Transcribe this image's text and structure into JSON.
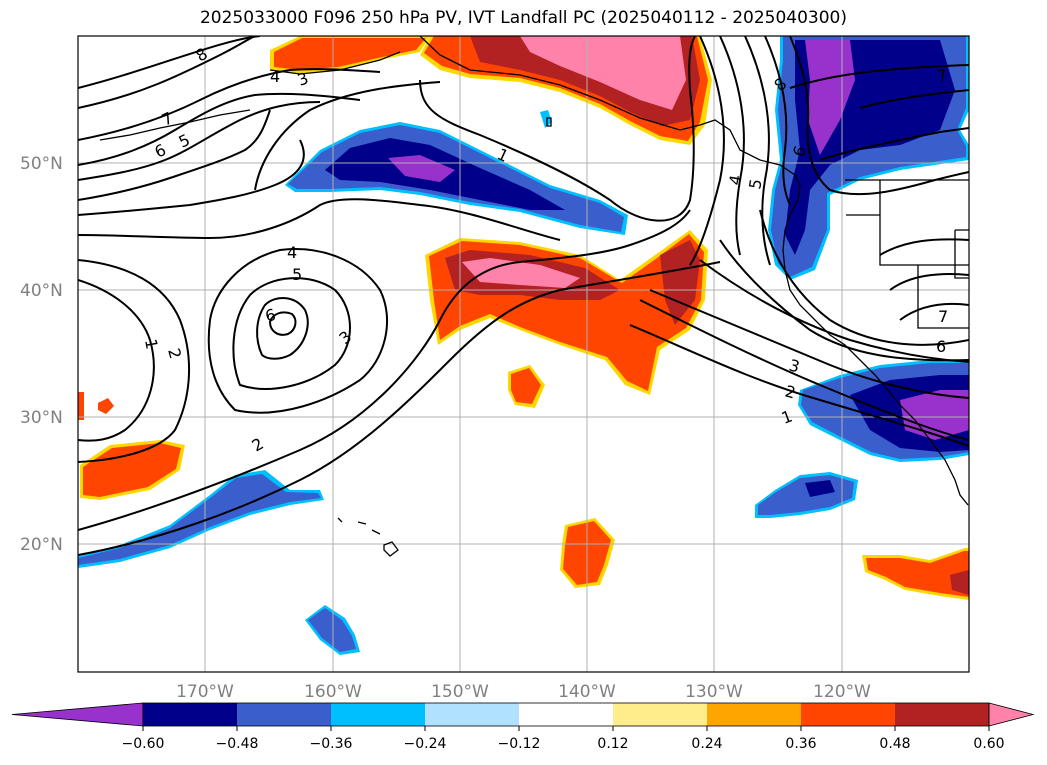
{
  "title": "2025033000 F096 250 hPa PV, IVT Landfall PC (2025040112 - 2025040300)",
  "lat_labels": [
    "50°N",
    "40°N",
    "30°N",
    "20°N"
  ],
  "lon_labels": [
    "170°W",
    "160°W",
    "150°W",
    "140°W",
    "130°W",
    "120°W"
  ],
  "colorbar": {
    "colors": [
      "#9932cc",
      "#00008b",
      "#3a5fcd",
      "#00bfff",
      "#b0e2ff",
      "#ffffff",
      "#ffec8b",
      "#ffa500",
      "#ff4500",
      "#b22222",
      "#ff82ab"
    ],
    "ticks": [
      "−0.60",
      "−0.48",
      "−0.36",
      "−0.24",
      "−0.12",
      "0.12",
      "0.24",
      "0.36",
      "0.48",
      "0.60"
    ]
  },
  "contour_labels": [
    "8",
    "7",
    "6",
    "5",
    "4",
    "3",
    "1",
    "2",
    "1",
    "4",
    "5",
    "6",
    "3",
    "2",
    "7",
    "6",
    "5",
    "4",
    "3",
    "2",
    "1",
    "8",
    "7",
    "6"
  ]
}
